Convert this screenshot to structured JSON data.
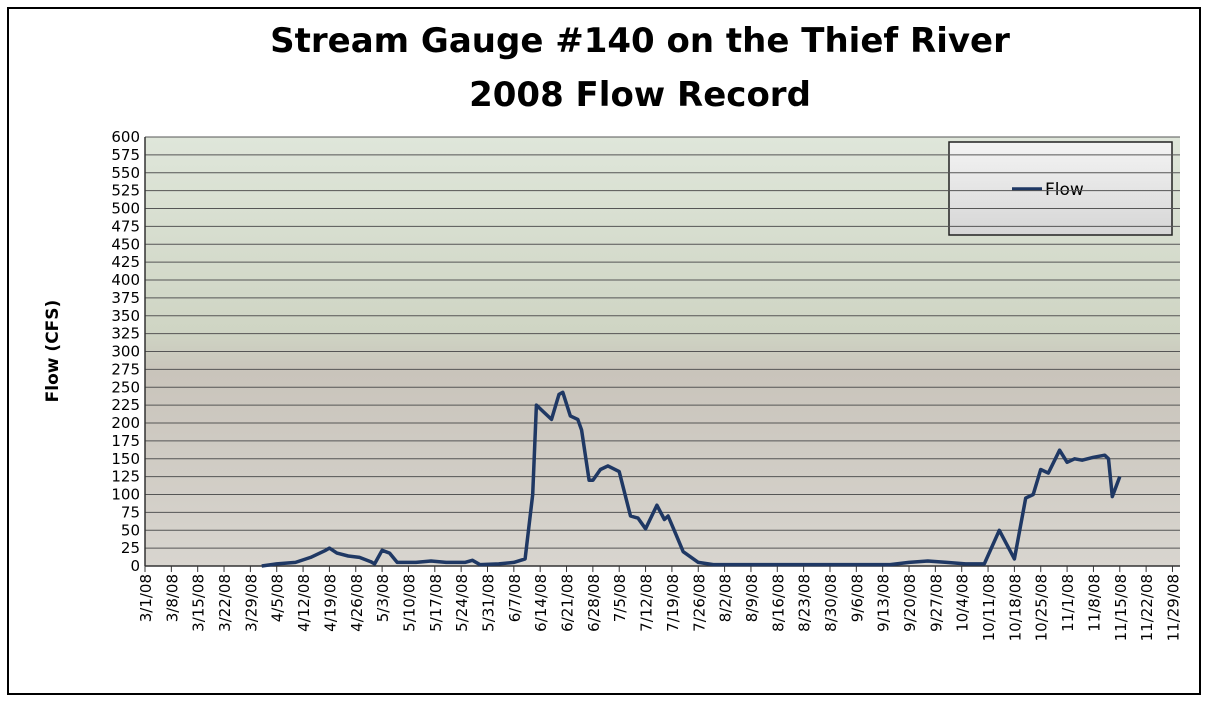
{
  "chart_data": {
    "type": "line",
    "title": "Stream Gauge #140 on the Thief River",
    "subtitle": "2008 Flow Record",
    "y_label": "Flow (CFS)",
    "x": [
      "4/1/08",
      "4/5/08",
      "4/10/08",
      "4/14/08",
      "4/18/08",
      "4/19/08",
      "4/21/08",
      "4/24/08",
      "4/27/08",
      "4/30/08",
      "5/1/08",
      "5/3/08",
      "5/5/08",
      "5/7/08",
      "5/12/08",
      "5/16/08",
      "5/20/08",
      "5/25/08",
      "5/27/08",
      "5/29/08",
      "6/3/08",
      "6/7/08",
      "6/10/08",
      "6/12/08",
      "6/13/08",
      "6/15/08",
      "6/17/08",
      "6/19/08",
      "6/20/08",
      "6/22/08",
      "6/24/08",
      "6/25/08",
      "6/27/08",
      "6/28/08",
      "6/30/08",
      "7/2/08",
      "7/5/08",
      "7/8/08",
      "7/10/08",
      "7/12/08",
      "7/15/08",
      "7/17/08",
      "7/18/08",
      "7/20/08",
      "7/22/08",
      "7/26/08",
      "7/30/08",
      "8/15/08",
      "9/1/08",
      "9/15/08",
      "9/20/08",
      "9/25/08",
      "9/30/08",
      "10/5/08",
      "10/10/08",
      "10/14/08",
      "10/17/08",
      "10/18/08",
      "10/21/08",
      "10/23/08",
      "10/25/08",
      "10/27/08",
      "10/30/08",
      "11/1/08",
      "11/3/08",
      "11/5/08",
      "11/8/08",
      "11/11/08",
      "11/12/08",
      "11/13/08",
      "11/15/08"
    ],
    "series": [
      {
        "name": "Flow",
        "color": "#1f3864",
        "values": [
          0,
          3,
          5,
          12,
          22,
          25,
          18,
          14,
          12,
          6,
          3,
          22,
          18,
          5,
          5,
          7,
          5,
          5,
          8,
          2,
          3,
          5,
          10,
          100,
          225,
          215,
          205,
          240,
          243,
          210,
          205,
          190,
          120,
          120,
          135,
          140,
          132,
          70,
          67,
          52,
          85,
          65,
          70,
          45,
          20,
          5,
          2,
          2,
          2,
          2,
          5,
          7,
          5,
          3,
          3,
          50,
          20,
          10,
          95,
          100,
          135,
          130,
          162,
          145,
          150,
          148,
          152,
          155,
          150,
          97,
          125
        ]
      }
    ],
    "xlim": [
      "3/1/08",
      "12/1/08"
    ],
    "xticks": [
      "3/1/08",
      "3/8/08",
      "3/15/08",
      "3/22/08",
      "3/29/08",
      "4/5/08",
      "4/12/08",
      "4/19/08",
      "4/26/08",
      "5/3/08",
      "5/10/08",
      "5/17/08",
      "5/24/08",
      "5/31/08",
      "6/7/08",
      "6/14/08",
      "6/21/08",
      "6/28/08",
      "7/5/08",
      "7/12/08",
      "7/19/08",
      "7/26/08",
      "8/2/08",
      "8/9/08",
      "8/16/08",
      "8/23/08",
      "8/30/08",
      "9/6/08",
      "9/13/08",
      "9/20/08",
      "9/27/08",
      "10/4/08",
      "10/11/08",
      "10/18/08",
      "10/25/08",
      "11/1/08",
      "11/8/08",
      "11/15/08",
      "11/22/08",
      "11/29/08"
    ],
    "ylim": [
      0,
      600
    ],
    "yticks": [
      0,
      25,
      50,
      75,
      100,
      125,
      150,
      175,
      200,
      225,
      250,
      275,
      300,
      325,
      350,
      375,
      400,
      425,
      450,
      475,
      500,
      525,
      550,
      575,
      600
    ],
    "grid": true,
    "legend": "top-right"
  }
}
